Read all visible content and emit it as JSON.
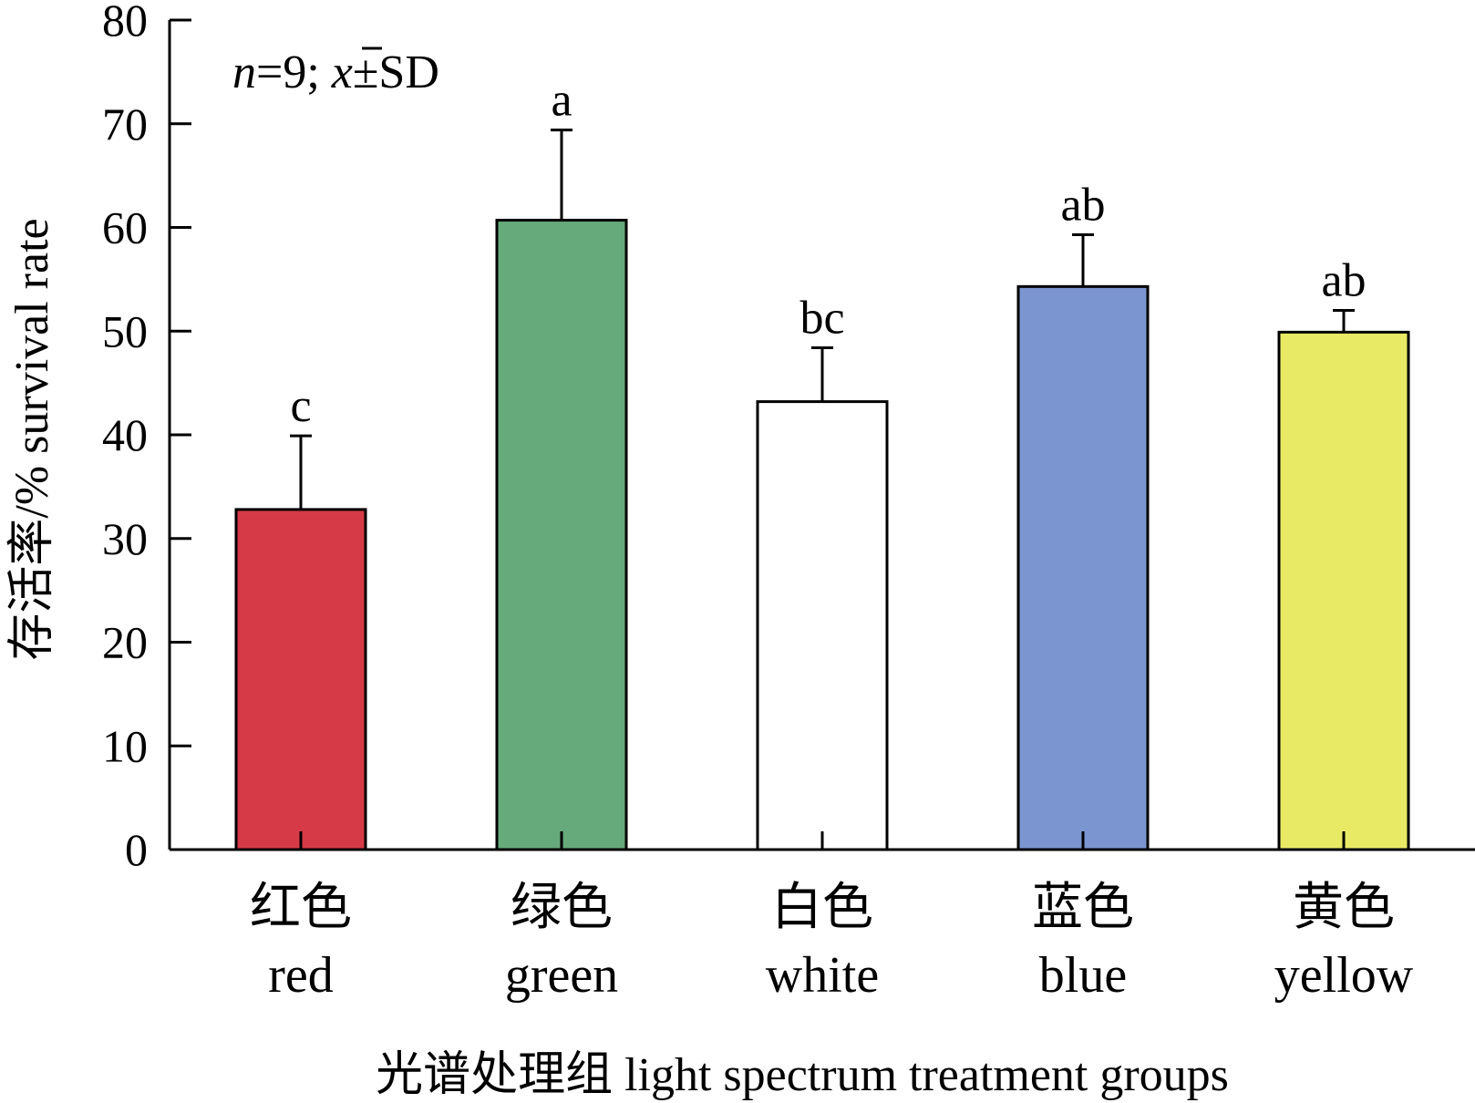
{
  "chart_data": {
    "type": "bar",
    "categories": [
      {
        "zh": "红色",
        "en": "red"
      },
      {
        "zh": "绿色",
        "en": "green"
      },
      {
        "zh": "白色",
        "en": "white"
      },
      {
        "zh": "蓝色",
        "en": "blue"
      },
      {
        "zh": "黄色",
        "en": "yellow"
      }
    ],
    "values": [
      32.8,
      60.7,
      43.2,
      54.3,
      49.9
    ],
    "errors": [
      7.1,
      8.7,
      5.2,
      5.0,
      2.1
    ],
    "significance": [
      "c",
      "a",
      "bc",
      "ab",
      "ab"
    ],
    "colors": [
      "#d63a46",
      "#66a97a",
      "#ffffff",
      "#7b95d0",
      "#e8ea66"
    ],
    "ylabel": "存活率/% survival rate",
    "xlabel": "光谱处理组 light spectrum treatment groups",
    "ylim": [
      0,
      80
    ],
    "yticks": [
      0,
      10,
      20,
      30,
      40,
      50,
      60,
      70,
      80
    ],
    "annotation": {
      "n": "n",
      "eq": "=9; ",
      "xbar": "x",
      "sd": "±SD"
    },
    "grid": false
  }
}
